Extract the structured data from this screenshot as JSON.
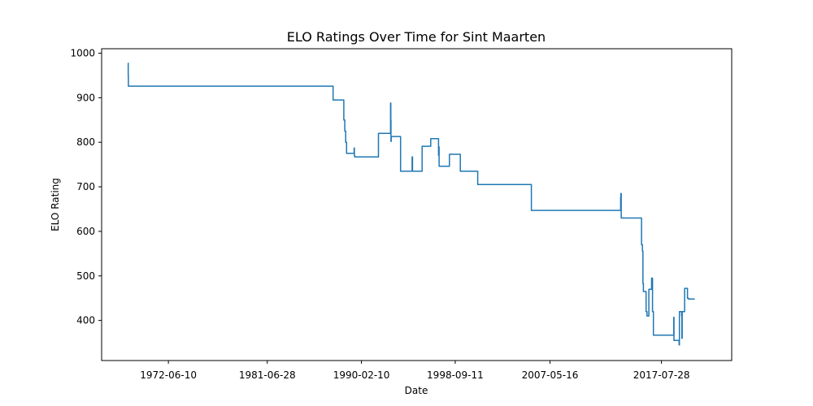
{
  "chart_data": {
    "type": "line",
    "title": "ELO Ratings Over Time for Sint Maarten",
    "xlabel": "Date",
    "ylabel": "ELO Rating",
    "grid": false,
    "legend": "none",
    "xlim": [
      "1966-05-01",
      "2024-01-01"
    ],
    "ylim": [
      310,
      1010
    ],
    "x_ticks": [
      "1972-06-10",
      "1981-06-28",
      "1990-02-10",
      "1998-09-11",
      "2007-05-16",
      "2017-07-28"
    ],
    "y_ticks": [
      400,
      500,
      600,
      700,
      800,
      900,
      1000
    ],
    "line_color": "#1f77b4",
    "series": [
      {
        "x": [
          "1968-10-01",
          "1968-10-05",
          "1968-10-10",
          "1987-07-01",
          "1987-07-08",
          "1988-06-01",
          "1988-07-01",
          "1988-08-01",
          "1988-09-01",
          "1988-10-01",
          "1989-06-01",
          "1989-06-10",
          "1989-06-20",
          "1989-07-01",
          "1989-08-01",
          "1991-09-01",
          "1992-10-01",
          "1992-10-10",
          "1992-10-20",
          "1992-10-25",
          "1992-11-01",
          "1993-09-01",
          "1993-09-10",
          "1994-10-01",
          "1994-10-15",
          "1995-09-01",
          "1995-09-10",
          "1996-06-01",
          "1996-06-15",
          "1997-03-01",
          "1997-03-10",
          "1997-03-20",
          "1998-03-01",
          "1999-03-01",
          "2000-10-01",
          "2005-09-01",
          "2013-11-01",
          "2013-11-10",
          "2013-11-20",
          "2015-10-01",
          "2015-10-15",
          "2015-11-01",
          "2015-11-15",
          "2015-12-01",
          "2016-03-01",
          "2016-04-01",
          "2016-06-01",
          "2016-07-01",
          "2016-09-01",
          "2016-10-01",
          "2016-11-01",
          "2018-09-01",
          "2018-09-10",
          "2018-09-20",
          "2019-03-01",
          "2019-03-10",
          "2019-03-20",
          "2019-06-01",
          "2019-06-10",
          "2019-06-20",
          "2019-09-01",
          "2019-09-10",
          "2019-11-01",
          "2019-11-15",
          "2019-12-01",
          "2019-12-15",
          "2020-01-01",
          "2020-01-15",
          "2020-06-01",
          "2020-06-15",
          "2020-08-01",
          "2020-08-15"
        ],
        "y": [
          978,
          950,
          926,
          926,
          895,
          895,
          850,
          825,
          800,
          775,
          775,
          787,
          770,
          767,
          767,
          820,
          820,
          888,
          850,
          802,
          813,
          813,
          735,
          767,
          735,
          791,
          791,
          791,
          808,
          771,
          790,
          746,
          773,
          735,
          705,
          647,
          677,
          685,
          630,
          570,
          570,
          556,
          483,
          465,
          420,
          410,
          470,
          470,
          495,
          420,
          367,
          367,
          407,
          355,
          355,
          345,
          420,
          410,
          360,
          420,
          420,
          472,
          472,
          472,
          472,
          450,
          450,
          448,
          448,
          448,
          448,
          448
        ]
      }
    ]
  }
}
